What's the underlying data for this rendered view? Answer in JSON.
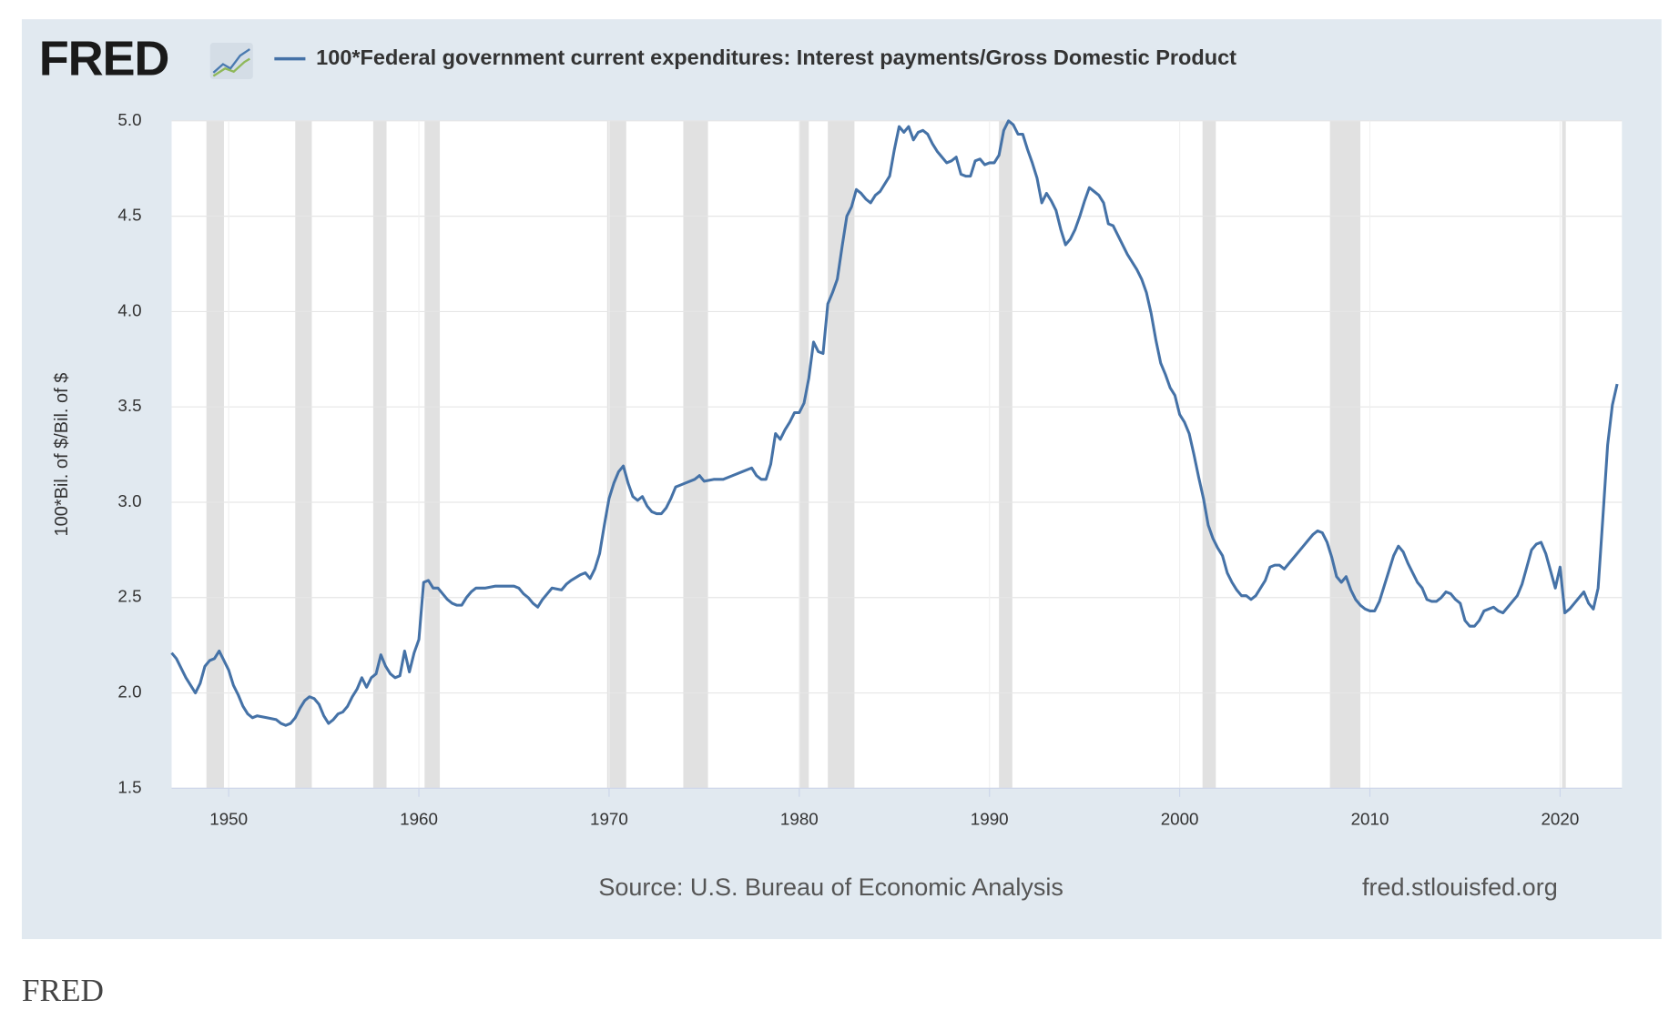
{
  "caption": "FRED",
  "chart_data": {
    "type": "line",
    "logo": "FRED",
    "ylabel": "100*Bil. of $/Bil. of $",
    "source": "Source: U.S. Bureau of Economic Analysis",
    "url": "fred.stlouisfed.org",
    "xlim": [
      1947,
      2023.25
    ],
    "ylim": [
      1.5,
      5.0
    ],
    "xticks": [
      1950,
      1960,
      1970,
      1980,
      1990,
      2000,
      2010,
      2020
    ],
    "yticks": [
      1.5,
      {
        "value": 2,
        "label": "2.0"
      },
      2.5,
      {
        "value": 3,
        "label": "3.0"
      },
      3.5,
      {
        "value": 4,
        "label": "4.0"
      },
      4.5,
      {
        "value": 5,
        "label": "5.0"
      }
    ],
    "grid": true,
    "recession_color": "#e1e1e1",
    "recessions": [
      [
        1948.83,
        1949.75
      ],
      [
        1953.5,
        1954.37
      ],
      [
        1957.6,
        1958.3
      ],
      [
        1960.3,
        1961.1
      ],
      [
        1969.9,
        1970.9
      ],
      [
        1973.9,
        1975.2
      ],
      [
        1980.0,
        1980.5
      ],
      [
        1981.5,
        1982.9
      ],
      [
        1990.5,
        1991.2
      ],
      [
        2001.2,
        2001.9
      ],
      [
        2007.9,
        2009.5
      ],
      [
        2020.1,
        2020.3
      ]
    ],
    "x": [
      1947.0,
      1947.25,
      1947.5,
      1947.75,
      1948.0,
      1948.25,
      1948.5,
      1948.75,
      1949.0,
      1949.25,
      1949.5,
      1949.75,
      1950.0,
      1950.25,
      1950.5,
      1950.75,
      1951.0,
      1951.25,
      1951.5,
      1952.0,
      1952.5,
      1952.75,
      1953.0,
      1953.25,
      1953.5,
      1953.75,
      1954.0,
      1954.25,
      1954.5,
      1954.75,
      1955.0,
      1955.25,
      1955.5,
      1955.75,
      1956.0,
      1956.25,
      1956.5,
      1956.75,
      1957.0,
      1957.25,
      1957.5,
      1957.75,
      1958.0,
      1958.25,
      1958.5,
      1958.75,
      1959.0,
      1959.25,
      1959.5,
      1959.75,
      1960.0,
      1960.25,
      1960.5,
      1960.75,
      1961.0,
      1961.25,
      1961.5,
      1961.75,
      1962.0,
      1962.25,
      1962.5,
      1962.75,
      1963.0,
      1963.5,
      1964.0,
      1964.5,
      1965.0,
      1965.25,
      1965.5,
      1965.75,
      1966.0,
      1966.25,
      1966.5,
      1966.75,
      1967.0,
      1967.5,
      1967.75,
      1968.0,
      1968.5,
      1968.75,
      1969.0,
      1969.25,
      1969.5,
      1969.75,
      1970.0,
      1970.25,
      1970.5,
      1970.75,
      1971.0,
      1971.25,
      1971.5,
      1971.75,
      1972.0,
      1972.25,
      1972.5,
      1972.75,
      1973.0,
      1973.25,
      1973.5,
      1973.75,
      1974.0,
      1974.5,
      1974.75,
      1975.0,
      1975.5,
      1976.0,
      1976.5,
      1977.0,
      1977.5,
      1977.75,
      1978.0,
      1978.25,
      1978.5,
      1978.75,
      1979.0,
      1979.25,
      1979.5,
      1979.75,
      1980.0,
      1980.25,
      1980.5,
      1980.75,
      1981.0,
      1981.25,
      1981.5,
      1981.75,
      1982.0,
      1982.25,
      1982.5,
      1982.75,
      1983.0,
      1983.25,
      1983.5,
      1983.75,
      1984.0,
      1984.25,
      1984.5,
      1984.75,
      1985.0,
      1985.25,
      1985.5,
      1985.75,
      1986.0,
      1986.25,
      1986.5,
      1986.75,
      1987.0,
      1987.25,
      1987.5,
      1987.75,
      1988.0,
      1988.25,
      1988.5,
      1988.75,
      1989.0,
      1989.25,
      1989.5,
      1989.75,
      1990.0,
      1990.25,
      1990.5,
      1990.75,
      1991.0,
      1991.25,
      1991.5,
      1991.75,
      1992.0,
      1992.25,
      1992.5,
      1992.75,
      1993.0,
      1993.25,
      1993.5,
      1993.75,
      1994.0,
      1994.25,
      1994.5,
      1994.75,
      1995.0,
      1995.25,
      1995.5,
      1995.75,
      1996.0,
      1996.25,
      1996.5,
      1996.75,
      1997.0,
      1997.25,
      1997.5,
      1997.75,
      1998.0,
      1998.25,
      1998.5,
      1998.75,
      1999.0,
      1999.25,
      1999.5,
      1999.75,
      2000.0,
      2000.25,
      2000.5,
      2000.75,
      2001.0,
      2001.25,
      2001.5,
      2001.75,
      2002.0,
      2002.25,
      2002.5,
      2002.75,
      2003.0,
      2003.25,
      2003.5,
      2003.75,
      2004.0,
      2004.25,
      2004.5,
      2004.75,
      2005.0,
      2005.25,
      2005.5,
      2005.75,
      2006.0,
      2006.5,
      2006.75,
      2007.0,
      2007.25,
      2007.5,
      2007.75,
      2008.0,
      2008.25,
      2008.5,
      2008.75,
      2009.0,
      2009.25,
      2009.5,
      2009.75,
      2010.0,
      2010.25,
      2010.5,
      2010.75,
      2011.0,
      2011.25,
      2011.5,
      2011.75,
      2012.0,
      2012.25,
      2012.5,
      2012.75,
      2013.0,
      2013.25,
      2013.5,
      2013.75,
      2014.0,
      2014.25,
      2014.5,
      2014.75,
      2015.0,
      2015.25,
      2015.5,
      2015.75,
      2016.0,
      2016.25,
      2016.5,
      2016.75,
      2017.0,
      2017.25,
      2017.5,
      2017.75,
      2018.0,
      2018.25,
      2018.5,
      2018.75,
      2019.0,
      2019.25,
      2019.5,
      2019.75,
      2020.0,
      2020.25,
      2020.5,
      2020.75,
      2021.0,
      2021.25,
      2021.5,
      2021.75,
      2022.0,
      2022.25,
      2022.5,
      2022.75,
      2023.0
    ],
    "series": [
      {
        "name": "100*Federal government current expenditures: Interest payments/Gross Domestic Product",
        "color": "#4572a7",
        "values": [
          2.21,
          2.18,
          2.13,
          2.08,
          2.04,
          2.0,
          2.05,
          2.14,
          2.17,
          2.18,
          2.22,
          2.17,
          2.12,
          2.04,
          1.99,
          1.93,
          1.89,
          1.87,
          1.88,
          1.87,
          1.86,
          1.84,
          1.83,
          1.84,
          1.87,
          1.92,
          1.96,
          1.98,
          1.97,
          1.94,
          1.88,
          1.84,
          1.86,
          1.89,
          1.9,
          1.93,
          1.98,
          2.02,
          2.08,
          2.03,
          2.08,
          2.1,
          2.2,
          2.14,
          2.1,
          2.08,
          2.09,
          2.22,
          2.11,
          2.21,
          2.28,
          2.58,
          2.59,
          2.55,
          2.55,
          2.52,
          2.49,
          2.47,
          2.46,
          2.46,
          2.5,
          2.53,
          2.55,
          2.55,
          2.56,
          2.56,
          2.56,
          2.55,
          2.52,
          2.5,
          2.47,
          2.45,
          2.49,
          2.52,
          2.55,
          2.54,
          2.57,
          2.59,
          2.62,
          2.63,
          2.6,
          2.65,
          2.73,
          2.88,
          3.02,
          3.1,
          3.16,
          3.19,
          3.1,
          3.03,
          3.01,
          3.03,
          2.98,
          2.95,
          2.94,
          2.94,
          2.97,
          3.02,
          3.08,
          3.09,
          3.1,
          3.12,
          3.14,
          3.11,
          3.12,
          3.12,
          3.14,
          3.16,
          3.18,
          3.14,
          3.12,
          3.12,
          3.2,
          3.36,
          3.33,
          3.38,
          3.42,
          3.47,
          3.47,
          3.52,
          3.65,
          3.84,
          3.79,
          3.78,
          4.04,
          4.1,
          4.17,
          4.34,
          4.5,
          4.55,
          4.64,
          4.62,
          4.59,
          4.57,
          4.61,
          4.63,
          4.67,
          4.71,
          4.85,
          4.97,
          4.94,
          4.97,
          4.9,
          4.94,
          4.95,
          4.93,
          4.88,
          4.84,
          4.81,
          4.78,
          4.79,
          4.81,
          4.72,
          4.71,
          4.71,
          4.79,
          4.8,
          4.77,
          4.78,
          4.78,
          4.82,
          4.95,
          5.0,
          4.98,
          4.93,
          4.93,
          4.85,
          4.78,
          4.7,
          4.57,
          4.62,
          4.58,
          4.53,
          4.43,
          4.35,
          4.38,
          4.43,
          4.5,
          4.58,
          4.65,
          4.63,
          4.61,
          4.57,
          4.46,
          4.45,
          4.4,
          4.35,
          4.3,
          4.26,
          4.22,
          4.17,
          4.1,
          3.99,
          3.85,
          3.73,
          3.67,
          3.6,
          3.56,
          3.46,
          3.42,
          3.36,
          3.25,
          3.13,
          3.02,
          2.88,
          2.81,
          2.76,
          2.72,
          2.63,
          2.58,
          2.54,
          2.51,
          2.51,
          2.49,
          2.51,
          2.55,
          2.59,
          2.66,
          2.67,
          2.67,
          2.65,
          2.68,
          2.71,
          2.77,
          2.8,
          2.83,
          2.85,
          2.84,
          2.79,
          2.71,
          2.61,
          2.58,
          2.61,
          2.54,
          2.49,
          2.46,
          2.44,
          2.43,
          2.43,
          2.48,
          2.56,
          2.64,
          2.72,
          2.77,
          2.74,
          2.68,
          2.63,
          2.58,
          2.55,
          2.49,
          2.48,
          2.48,
          2.5,
          2.53,
          2.52,
          2.49,
          2.47,
          2.38,
          2.35,
          2.35,
          2.38,
          2.43,
          2.44,
          2.45,
          2.43,
          2.42,
          2.45,
          2.48,
          2.51,
          2.57,
          2.66,
          2.75,
          2.78,
          2.79,
          2.73,
          2.64,
          2.55,
          2.66,
          2.42,
          2.44,
          2.47,
          2.5,
          2.53,
          2.47,
          2.44,
          2.55,
          2.92,
          3.3,
          3.51,
          3.62
        ]
      }
    ]
  }
}
